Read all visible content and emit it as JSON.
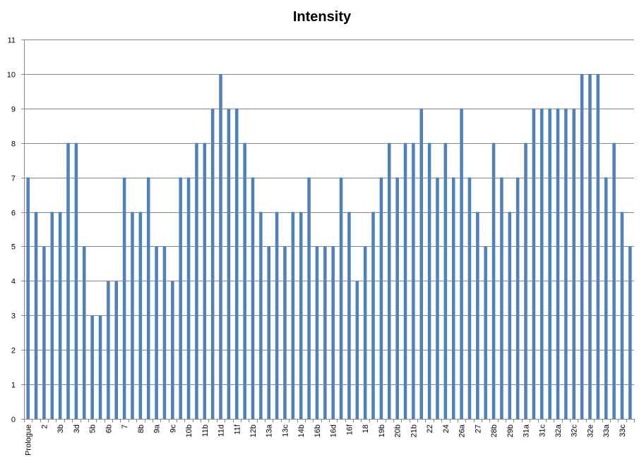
{
  "chart_data": {
    "type": "bar",
    "title": "Intensity",
    "xlabel": "",
    "ylabel": "",
    "ylim": [
      0,
      11
    ],
    "yticks": [
      0,
      1,
      2,
      3,
      4,
      5,
      6,
      7,
      8,
      9,
      10,
      11
    ],
    "grid": true,
    "legend": "none",
    "bar_color": "#4F81BD",
    "tick_labels": [
      "Prologue",
      "2",
      "3b",
      "3d",
      "5b",
      "6b",
      "7",
      "8b",
      "9a",
      "9c",
      "10b",
      "11b",
      "11d",
      "11f",
      "12b",
      "13a",
      "13c",
      "14b",
      "16b",
      "16d",
      "16f",
      "18",
      "19b",
      "20b",
      "21b",
      "22",
      "24",
      "26a",
      "27",
      "28b",
      "29b",
      "31a",
      "31c",
      "32a",
      "32c",
      "32e",
      "33a",
      "33c"
    ],
    "values": [
      7,
      6,
      5,
      6,
      6,
      8,
      8,
      5,
      3,
      3,
      4,
      4,
      7,
      6,
      6,
      7,
      5,
      5,
      4,
      7,
      7,
      8,
      8,
      9,
      10,
      9,
      9,
      8,
      7,
      6,
      5,
      6,
      5,
      6,
      6,
      7,
      5,
      5,
      5,
      7,
      6,
      4,
      5,
      6,
      7,
      8,
      7,
      8,
      8,
      9,
      8,
      7,
      8,
      7,
      9,
      7,
      6,
      5,
      8,
      7,
      6,
      7,
      8,
      9,
      9,
      9,
      9,
      9,
      9,
      10,
      10,
      10,
      7,
      8,
      6,
      5
    ]
  }
}
